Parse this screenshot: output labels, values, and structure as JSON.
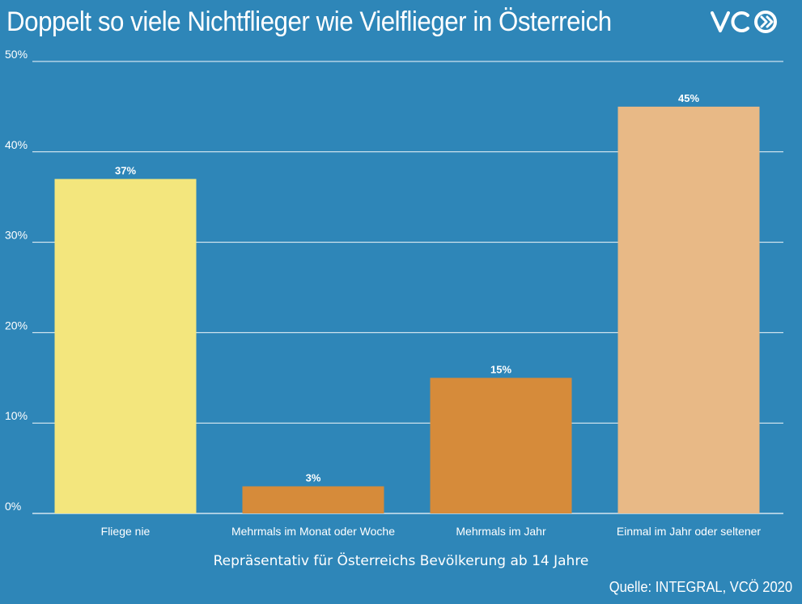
{
  "header": {
    "title": "Doppelt so viele Nichtflieger wie Vielflieger in Österreich",
    "logo_text": "VCÖ"
  },
  "footer": {
    "subtitle": "Repräsentativ für Österreichs Bevölkerung ab 14 Jahre",
    "source": "Quelle: INTEGRAL, VCÖ 2020"
  },
  "colors": {
    "background": "#2E86B8",
    "grid": "#ffffff",
    "text": "#ffffff"
  },
  "chart_data": {
    "type": "bar",
    "title": "Doppelt so viele Nichtflieger wie Vielflieger in Österreich",
    "xlabel": "",
    "ylabel": "",
    "ylim": [
      0,
      50
    ],
    "yticks": [
      0,
      10,
      20,
      30,
      40,
      50
    ],
    "ytick_labels": [
      "0%",
      "10%",
      "20%",
      "30%",
      "40%",
      "50%"
    ],
    "grid": true,
    "categories": [
      "Fliege nie",
      "Mehrmals im Monat oder Woche",
      "Mehrmals im Jahr",
      "Einmal im Jahr oder seltener"
    ],
    "values": [
      37,
      3,
      15,
      45
    ],
    "value_labels": [
      "37%",
      "3%",
      "15%",
      "45%"
    ],
    "bar_colors": [
      "#F3E67D",
      "#D68B3A",
      "#D68B3A",
      "#E8B986"
    ]
  }
}
